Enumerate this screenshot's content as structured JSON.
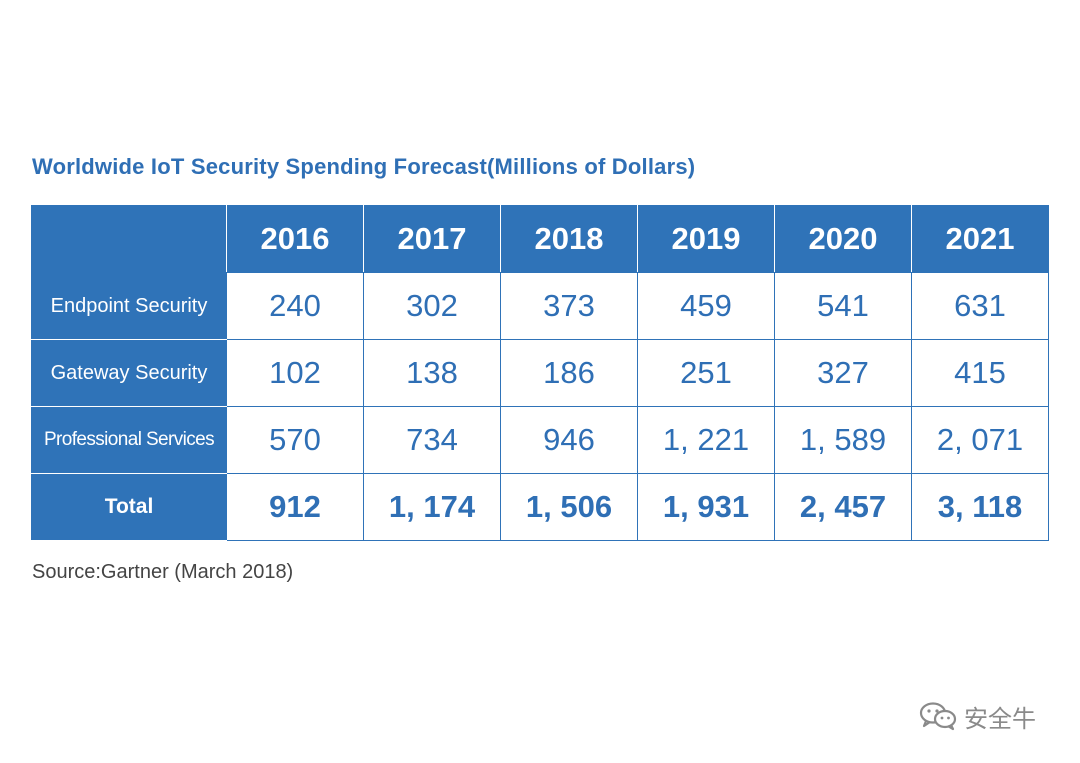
{
  "title": "Worldwide IoT Security Spending Forecast(Millions of Dollars)",
  "source": "Source:Gartner (March 2018)",
  "watermark": {
    "icon": "wechat-icon",
    "text": "安全牛"
  },
  "colors": {
    "accent": "#2f73b8",
    "title": "#2f6fb5",
    "value_text": "#2f6fb5",
    "source_text": "#444444"
  },
  "chart_data": {
    "type": "table",
    "title": "Worldwide IoT Security Spending Forecast(Millions of Dollars)",
    "columns": [
      "2016",
      "2017",
      "2018",
      "2019",
      "2020",
      "2021"
    ],
    "rows": [
      {
        "label": "Endpoint Security",
        "values": [
          240,
          302,
          373,
          459,
          541,
          631
        ],
        "display": [
          "240",
          "302",
          "373",
          "459",
          "541",
          "631"
        ]
      },
      {
        "label": "Gateway Security",
        "values": [
          102,
          138,
          186,
          251,
          327,
          415
        ],
        "display": [
          "102",
          "138",
          "186",
          "251",
          "327",
          "415"
        ]
      },
      {
        "label": "Professional Services",
        "values": [
          570,
          734,
          946,
          1221,
          1589,
          2071
        ],
        "display": [
          "570",
          "734",
          "946",
          "1, 221",
          "1, 589",
          "2, 071"
        ]
      },
      {
        "label": "Total",
        "values": [
          912,
          1174,
          1506,
          1931,
          2457,
          3118
        ],
        "display": [
          "912",
          "1, 174",
          "1, 506",
          "1, 931",
          "2, 457",
          "3, 118"
        ]
      }
    ]
  }
}
